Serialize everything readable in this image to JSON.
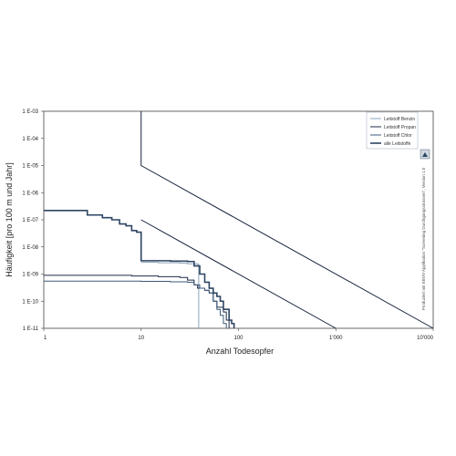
{
  "chart_data": {
    "type": "line",
    "xscale": "log",
    "yscale": "log",
    "xlim": [
      1,
      10000
    ],
    "ylim": [
      1e-11,
      0.001
    ],
    "xlabel": "Anzahl Todesopfer",
    "ylabel": "Häufigkeit [pro 100 m und Jahr]",
    "x_tick_labels": [
      "1",
      "10",
      "100",
      "1'000",
      "10'000"
    ],
    "x_tick_values": [
      1,
      10,
      100,
      1000,
      10000
    ],
    "y_tick_labels": [
      "1 E-03",
      "1 E-04",
      "1 E-05",
      "1 E-06",
      "1 E-07",
      "1 E-08",
      "1 E-09",
      "1 E-10",
      "1 E-11"
    ],
    "y_tick_values": [
      0.001,
      0.0001,
      1e-05,
      1e-06,
      1e-07,
      1e-08,
      1e-09,
      1e-10,
      1e-11
    ],
    "grid": false,
    "legend_position": "top-right",
    "side_note": "Produziert mit EBVV-Applikation \"Screening Durchgangsstrassen\", Version 1.0",
    "series": [
      {
        "name": "Leitstoff Benzin",
        "color": "#8aa3b8",
        "width": 1,
        "points": [
          [
            10,
            2.7e-09
          ],
          [
            15,
            2.6e-09
          ],
          [
            25,
            2.5e-09
          ],
          [
            30,
            2.4e-09
          ],
          [
            38,
            2.3e-09
          ],
          [
            39,
            2.3e-09
          ],
          [
            39,
            1e-11
          ]
        ]
      },
      {
        "name": "Leitstoff Propan",
        "color": "#1d2b4a",
        "width": 1,
        "points": [
          [
            1,
            9e-10
          ],
          [
            4,
            9e-10
          ],
          [
            8,
            8.5e-10
          ],
          [
            15,
            8e-10
          ],
          [
            25,
            7.5e-10
          ],
          [
            30,
            6e-10
          ],
          [
            35,
            4e-10
          ],
          [
            38,
            3e-10
          ],
          [
            45,
            2.5e-10
          ],
          [
            50,
            2e-10
          ],
          [
            55,
            1e-10
          ],
          [
            60,
            6e-11
          ],
          [
            70,
            4e-11
          ],
          [
            75,
            2e-11
          ],
          [
            80,
            1e-11
          ]
        ]
      },
      {
        "name": "Leitstoff Chlor",
        "color": "#3e5a78",
        "width": 1,
        "points": [
          [
            1,
            5.5e-10
          ],
          [
            5,
            5.5e-10
          ],
          [
            10,
            5.4e-10
          ],
          [
            20,
            5.2e-10
          ],
          [
            30,
            5e-10
          ],
          [
            35,
            4e-10
          ],
          [
            40,
            3e-10
          ],
          [
            45,
            2.5e-10
          ],
          [
            50,
            2e-10
          ],
          [
            55,
            1e-10
          ],
          [
            60,
            5e-11
          ],
          [
            65,
            3e-11
          ],
          [
            70,
            1.5e-11
          ],
          [
            75,
            1e-11
          ]
        ]
      },
      {
        "name": "alle Leitstoffe",
        "color": "#2d4563",
        "width": 1.6,
        "points": [
          [
            1,
            2.2e-07
          ],
          [
            2.5,
            2.2e-07
          ],
          [
            2.8,
            1.5e-07
          ],
          [
            4,
            1.2e-07
          ],
          [
            5,
            1e-07
          ],
          [
            6,
            7e-08
          ],
          [
            7,
            6e-08
          ],
          [
            8,
            4e-08
          ],
          [
            9,
            3.5e-08
          ],
          [
            10,
            3.1e-09
          ],
          [
            20,
            3e-09
          ],
          [
            30,
            2.9e-09
          ],
          [
            35,
            2e-09
          ],
          [
            40,
            1e-09
          ],
          [
            45,
            5e-10
          ],
          [
            50,
            3e-10
          ],
          [
            55,
            2e-10
          ],
          [
            60,
            1.5e-10
          ],
          [
            65,
            1e-10
          ],
          [
            70,
            5e-11
          ],
          [
            80,
            2e-11
          ],
          [
            85,
            1.5e-11
          ],
          [
            90,
            1e-11
          ]
        ]
      }
    ],
    "criteria_lines": [
      {
        "role": "upper",
        "color": "#16223d",
        "points": [
          [
            10,
            0.001
          ],
          [
            10,
            1e-05
          ],
          [
            10000,
            1e-11
          ]
        ]
      },
      {
        "role": "lower",
        "color": "#16223d",
        "points": [
          [
            10,
            1e-07
          ],
          [
            1000,
            1e-11
          ]
        ]
      }
    ]
  }
}
